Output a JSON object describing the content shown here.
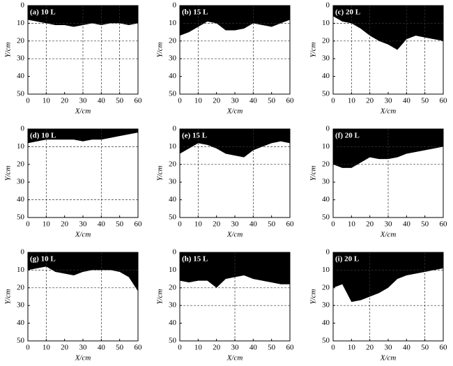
{
  "chart_data": [
    {
      "type": "area",
      "title": "(a) 10 L",
      "x_label": "X/cm",
      "y_label": "Y/cm",
      "color": "#000000",
      "x": [
        0,
        5,
        10,
        15,
        20,
        25,
        30,
        35,
        40,
        45,
        50,
        55,
        60
      ],
      "values": [
        8,
        9,
        10,
        11,
        11,
        12,
        11,
        10,
        11,
        10,
        10,
        11,
        10
      ],
      "xlim": [
        0,
        60
      ],
      "ylim": [
        0,
        50
      ],
      "xticks": [
        0,
        10,
        20,
        30,
        40,
        50,
        60
      ],
      "yticks": [
        0,
        10,
        20,
        30,
        40,
        50
      ],
      "y_inverted": true,
      "vlines": [
        10,
        30,
        40,
        50
      ],
      "hlines": [
        10,
        20,
        30
      ]
    },
    {
      "type": "area",
      "title": "(b) 15 L",
      "x_label": "X/cm",
      "y_label": "Y/cm",
      "color": "#000000",
      "x": [
        0,
        5,
        10,
        15,
        20,
        25,
        30,
        35,
        40,
        45,
        50,
        55,
        60
      ],
      "values": [
        17,
        15,
        12,
        9,
        10,
        14,
        14,
        13,
        10,
        11,
        12,
        10,
        8
      ],
      "xlim": [
        0,
        60
      ],
      "ylim": [
        0,
        50
      ],
      "xticks": [
        0,
        10,
        20,
        30,
        40,
        50,
        60
      ],
      "yticks": [
        0,
        10,
        20,
        30,
        40,
        50
      ],
      "y_inverted": true,
      "vlines": [
        10,
        40
      ],
      "hlines": [
        10,
        20,
        30
      ]
    },
    {
      "type": "area",
      "title": "(c) 20 L",
      "x_label": "X/cm",
      "y_label": "Y/cm",
      "color": "#000000",
      "x": [
        0,
        5,
        10,
        15,
        20,
        25,
        30,
        35,
        40,
        45,
        50,
        55,
        60
      ],
      "values": [
        6,
        9,
        10,
        13,
        17,
        20,
        22,
        25,
        19,
        17,
        18,
        19,
        20
      ],
      "xlim": [
        0,
        60
      ],
      "ylim": [
        0,
        50
      ],
      "xticks": [
        0,
        10,
        20,
        30,
        40,
        50,
        60
      ],
      "yticks": [
        0,
        10,
        20,
        30,
        40,
        50
      ],
      "y_inverted": true,
      "vlines": [
        10,
        20,
        40,
        50
      ],
      "hlines": [
        10,
        20
      ]
    },
    {
      "type": "area",
      "title": "(d) 10 L",
      "x_label": "X/cm",
      "y_label": "Y/cm",
      "color": "#000000",
      "x": [
        0,
        5,
        10,
        15,
        20,
        25,
        30,
        35,
        40,
        45,
        50,
        55,
        60
      ],
      "values": [
        8,
        7,
        6,
        6,
        6,
        6,
        7,
        6,
        6,
        5,
        4,
        3,
        2
      ],
      "xlim": [
        0,
        60
      ],
      "ylim": [
        0,
        50
      ],
      "xticks": [
        0,
        10,
        20,
        30,
        40,
        50,
        60
      ],
      "yticks": [
        0,
        10,
        20,
        30,
        40,
        50
      ],
      "y_inverted": true,
      "vlines": [
        10,
        40
      ],
      "hlines": [
        10,
        40
      ]
    },
    {
      "type": "area",
      "title": "(e) 15 L",
      "x_label": "X/cm",
      "y_label": "Y/cm",
      "color": "#000000",
      "x": [
        0,
        5,
        10,
        15,
        20,
        25,
        30,
        35,
        40,
        45,
        50,
        55,
        60
      ],
      "values": [
        14,
        11,
        8,
        9,
        11,
        14,
        15,
        16,
        12,
        10,
        8,
        7,
        8
      ],
      "xlim": [
        0,
        60
      ],
      "ylim": [
        0,
        50
      ],
      "xticks": [
        0,
        10,
        20,
        30,
        40,
        50,
        60
      ],
      "yticks": [
        0,
        10,
        20,
        30,
        40,
        50
      ],
      "y_inverted": true,
      "vlines": [
        10,
        40
      ],
      "hlines": [
        10,
        20
      ]
    },
    {
      "type": "area",
      "title": "(f) 20 L",
      "x_label": "X/cm",
      "y_label": "Y/cm",
      "color": "#000000",
      "x": [
        0,
        5,
        10,
        15,
        20,
        25,
        30,
        35,
        40,
        45,
        50,
        55,
        60
      ],
      "values": [
        20,
        22,
        22,
        19,
        16,
        17,
        17,
        16,
        14,
        13,
        12,
        11,
        10
      ],
      "xlim": [
        0,
        60
      ],
      "ylim": [
        0,
        50
      ],
      "xticks": [
        0,
        10,
        20,
        30,
        40,
        50,
        60
      ],
      "yticks": [
        0,
        10,
        20,
        30,
        40,
        50
      ],
      "y_inverted": true,
      "vlines": [
        30
      ],
      "hlines": [
        10,
        20
      ]
    },
    {
      "type": "area",
      "title": "(g) 10 L",
      "x_label": "X/cm",
      "y_label": "Y/cm",
      "color": "#000000",
      "x": [
        0,
        5,
        10,
        15,
        20,
        25,
        30,
        35,
        40,
        45,
        50,
        55,
        60
      ],
      "values": [
        10,
        9,
        8,
        11,
        12,
        13,
        11,
        10,
        10,
        10,
        11,
        14,
        22
      ],
      "xlim": [
        0,
        60
      ],
      "ylim": [
        0,
        50
      ],
      "xticks": [
        0,
        10,
        20,
        30,
        40,
        50,
        60
      ],
      "yticks": [
        0,
        10,
        20,
        30,
        40,
        50
      ],
      "y_inverted": true,
      "vlines": [
        10,
        40
      ],
      "hlines": [
        10,
        20
      ]
    },
    {
      "type": "area",
      "title": "(h) 15 L",
      "x_label": "X/cm",
      "y_label": "Y/cm",
      "color": "#000000",
      "x": [
        0,
        5,
        10,
        15,
        20,
        25,
        30,
        35,
        40,
        45,
        50,
        55,
        60
      ],
      "values": [
        16,
        17,
        16,
        16,
        20,
        15,
        14,
        13,
        15,
        16,
        17,
        18,
        18
      ],
      "xlim": [
        0,
        60
      ],
      "ylim": [
        0,
        50
      ],
      "xticks": [
        0,
        10,
        20,
        30,
        40,
        50,
        60
      ],
      "yticks": [
        0,
        10,
        20,
        30,
        40,
        50
      ],
      "y_inverted": true,
      "vlines": [
        30
      ],
      "hlines": [
        20,
        30
      ]
    },
    {
      "type": "area",
      "title": "(i) 20 L",
      "x_label": "X/cm",
      "y_label": "Y/cm",
      "color": "#000000",
      "x": [
        0,
        5,
        10,
        15,
        20,
        25,
        30,
        35,
        40,
        45,
        50,
        55,
        60
      ],
      "values": [
        20,
        18,
        28,
        27,
        25,
        23,
        20,
        15,
        13,
        12,
        11,
        10,
        9
      ],
      "xlim": [
        0,
        60
      ],
      "ylim": [
        0,
        50
      ],
      "xticks": [
        0,
        10,
        20,
        30,
        40,
        50,
        60
      ],
      "yticks": [
        0,
        10,
        20,
        30,
        40,
        50
      ],
      "y_inverted": true,
      "vlines": [
        20,
        50
      ],
      "hlines": [
        10,
        30
      ]
    }
  ]
}
